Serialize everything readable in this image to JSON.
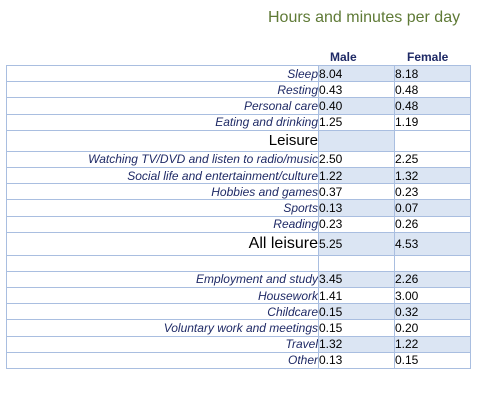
{
  "title": "Hours and minutes per day",
  "columns": {
    "male": "Male",
    "female": "Female"
  },
  "rows": [
    {
      "label": "Sleep",
      "male": "8.04",
      "female": "8.18",
      "shade": true
    },
    {
      "label": "Resting",
      "male": "0.43",
      "female": "0.48",
      "shade": false
    },
    {
      "label": "Personal care",
      "male": "0.40",
      "female": "0.48",
      "shade": true
    },
    {
      "label": "Eating and drinking",
      "male": "1.25",
      "female": "1.19",
      "shade": false
    },
    {
      "label": "Leisure",
      "male": "",
      "female": "",
      "section": true
    },
    {
      "label": "Watching TV/DVD and listen to radio/music",
      "male": "2.50",
      "female": "2.25",
      "shade": false
    },
    {
      "label": "Social life and entertainment/culture",
      "male": "1.22",
      "female": "1.32",
      "shade": true
    },
    {
      "label": "Hobbies and games",
      "male": "0.37",
      "female": "0.23",
      "shade": false
    },
    {
      "label": "Sports",
      "male": "0.13",
      "female": "0.07",
      "shade": true
    },
    {
      "label": "Reading",
      "male": "0.23",
      "female": "0.26",
      "shade": false
    },
    {
      "label": "All leisure",
      "male": "5.25",
      "female": "4.53",
      "section": true,
      "big": true,
      "shade": true
    },
    {
      "label": "",
      "male": "",
      "female": "",
      "spacer": true
    },
    {
      "label": "Employment and study",
      "male": "3.45",
      "female": "2.26",
      "shade": true
    },
    {
      "label": "Housework",
      "male": "1.41",
      "female": "3.00",
      "shade": false
    },
    {
      "label": "Childcare",
      "male": "0.15",
      "female": "0.32",
      "shade": true
    },
    {
      "label": "Voluntary work and meetings",
      "male": "0.15",
      "female": "0.20",
      "shade": false
    },
    {
      "label": "Travel",
      "male": "1.32",
      "female": "1.22",
      "shade": true
    },
    {
      "label": "Other",
      "male": "0.13",
      "female": "0.15",
      "shade": false
    }
  ]
}
